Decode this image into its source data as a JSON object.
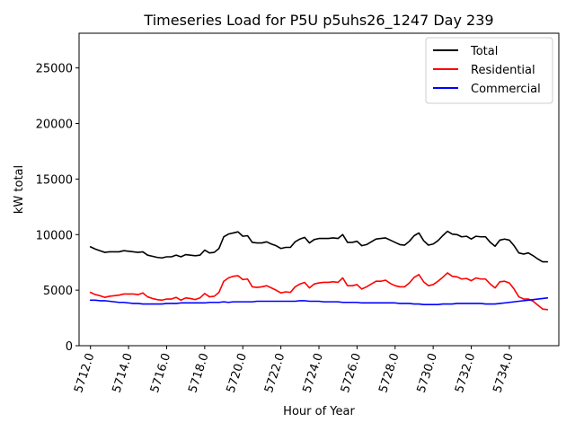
{
  "chart_data": {
    "type": "line",
    "title": "Timeseries Load for P5U p5uhs26_1247  Day 239",
    "xlabel": "Hour of Year",
    "ylabel": "kW total",
    "xlim": [
      5711.4,
      5736.6
    ],
    "ylim": [
      0,
      28125
    ],
    "x_ticks": [
      5712,
      5714,
      5716,
      5718,
      5720,
      5722,
      5724,
      5726,
      5728,
      5730,
      5732,
      5734
    ],
    "x_tick_labels": [
      "5712.0",
      "5714.0",
      "5716.0",
      "5718.0",
      "5720.0",
      "5722.0",
      "5724.0",
      "5726.0",
      "5728.0",
      "5730.0",
      "5732.0",
      "5734.0"
    ],
    "y_ticks": [
      0,
      5000,
      10000,
      15000,
      20000,
      25000
    ],
    "y_tick_labels": [
      "0",
      "5000",
      "10000",
      "15000",
      "20000",
      "25000"
    ],
    "grid": false,
    "legend_position": "top-right",
    "x_start": 5712,
    "x_step": 0.25,
    "series": [
      {
        "name": "Total",
        "color": "#000000",
        "values": [
          8900,
          8700,
          8550,
          8400,
          8450,
          8450,
          8450,
          8550,
          8500,
          8450,
          8400,
          8450,
          8150,
          8050,
          7950,
          7900,
          8000,
          8000,
          8150,
          8000,
          8200,
          8150,
          8100,
          8150,
          8600,
          8350,
          8400,
          8750,
          9800,
          10050,
          10150,
          10250,
          9850,
          9900,
          9300,
          9250,
          9250,
          9350,
          9150,
          9000,
          8750,
          8850,
          8850,
          9350,
          9600,
          9750,
          9250,
          9550,
          9650,
          9650,
          9650,
          9700,
          9650,
          10000,
          9300,
          9300,
          9400,
          9000,
          9100,
          9350,
          9600,
          9650,
          9700,
          9500,
          9300,
          9100,
          9050,
          9400,
          9900,
          10150,
          9450,
          9050,
          9150,
          9450,
          9900,
          10300,
          10050,
          10000,
          9800,
          9850,
          9600,
          9850,
          9800,
          9800,
          9300,
          8950,
          9500,
          9600,
          9500,
          9000,
          8350,
          8250,
          8350,
          8100,
          7800,
          7550,
          7550
        ]
      },
      {
        "name": "Residential",
        "color": "#ff0000",
        "values": [
          4800,
          4600,
          4500,
          4350,
          4450,
          4500,
          4550,
          4650,
          4650,
          4650,
          4600,
          4750,
          4400,
          4250,
          4150,
          4100,
          4200,
          4200,
          4350,
          4100,
          4300,
          4250,
          4150,
          4300,
          4700,
          4400,
          4450,
          4800,
          5800,
          6100,
          6250,
          6300,
          5950,
          6000,
          5300,
          5250,
          5300,
          5400,
          5200,
          5000,
          4750,
          4850,
          4800,
          5300,
          5550,
          5700,
          5200,
          5550,
          5650,
          5700,
          5700,
          5750,
          5700,
          6100,
          5400,
          5400,
          5500,
          5100,
          5300,
          5550,
          5800,
          5800,
          5900,
          5600,
          5400,
          5300,
          5300,
          5650,
          6150,
          6400,
          5750,
          5400,
          5500,
          5800,
          6150,
          6550,
          6250,
          6200,
          6000,
          6050,
          5850,
          6100,
          6000,
          6000,
          5550,
          5200,
          5750,
          5800,
          5650,
          5100,
          4400,
          4200,
          4200,
          4000,
          3650,
          3300,
          3250
        ]
      },
      {
        "name": "Commercial",
        "color": "#0000ff",
        "values": [
          4100,
          4100,
          4050,
          4050,
          4000,
          3950,
          3900,
          3900,
          3850,
          3800,
          3800,
          3750,
          3750,
          3750,
          3750,
          3750,
          3800,
          3800,
          3800,
          3850,
          3850,
          3850,
          3850,
          3850,
          3850,
          3900,
          3900,
          3900,
          3950,
          3900,
          3950,
          3950,
          3950,
          3950,
          3950,
          4000,
          4000,
          4000,
          4000,
          4000,
          4000,
          4000,
          4000,
          4000,
          4050,
          4050,
          4000,
          4000,
          4000,
          3950,
          3950,
          3950,
          3950,
          3900,
          3900,
          3900,
          3900,
          3850,
          3850,
          3850,
          3850,
          3850,
          3850,
          3850,
          3850,
          3800,
          3800,
          3800,
          3750,
          3750,
          3700,
          3700,
          3700,
          3700,
          3750,
          3750,
          3750,
          3800,
          3800,
          3800,
          3800,
          3800,
          3800,
          3750,
          3750,
          3750,
          3800,
          3850,
          3900,
          3950,
          4000,
          4050,
          4100,
          4150,
          4200,
          4250,
          4300
        ]
      }
    ]
  }
}
